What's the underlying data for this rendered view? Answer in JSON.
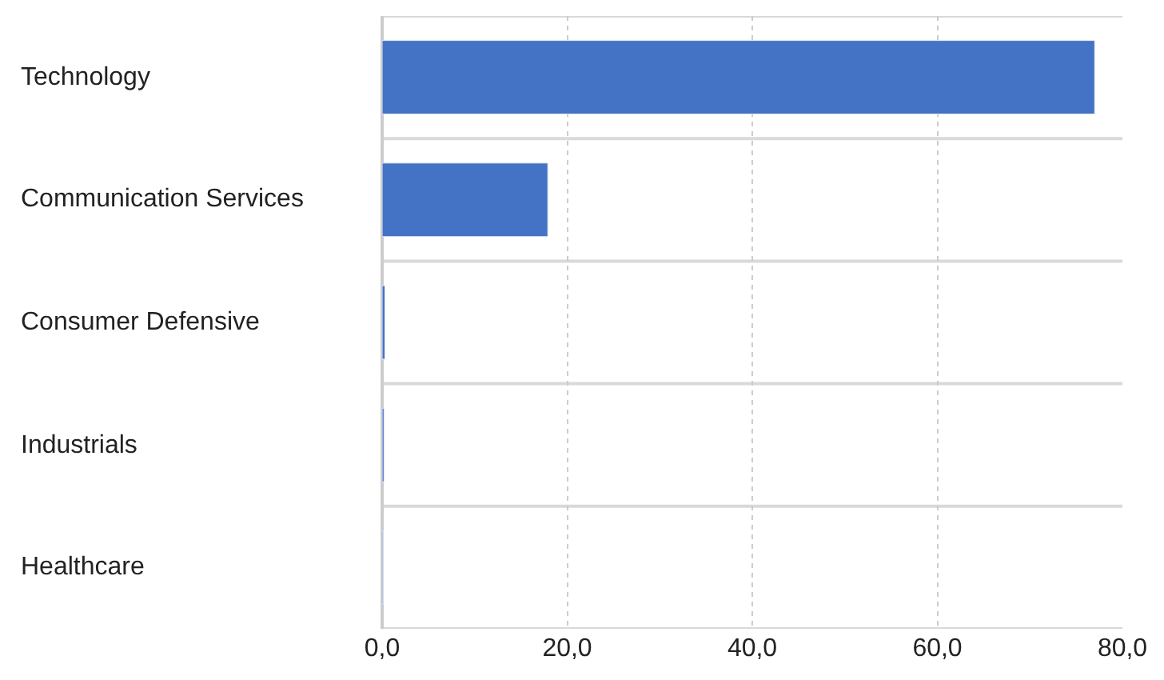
{
  "chart_data": {
    "type": "bar",
    "orientation": "horizontal",
    "categories": [
      "Technology",
      "Communication Services",
      "Consumer Defensive",
      "Industrials",
      "Healthcare"
    ],
    "values": [
      77.0,
      17.9,
      0.3,
      0.2,
      0.1
    ],
    "color": "#4472c4",
    "xlim": [
      0,
      80
    ],
    "xticks": [
      {
        "value": 0,
        "label": "0,0"
      },
      {
        "value": 20,
        "label": "20,0"
      },
      {
        "value": 40,
        "label": "40,0"
      },
      {
        "value": 60,
        "label": "60,0"
      },
      {
        "value": 80,
        "label": "80,0"
      }
    ],
    "grid": true
  }
}
